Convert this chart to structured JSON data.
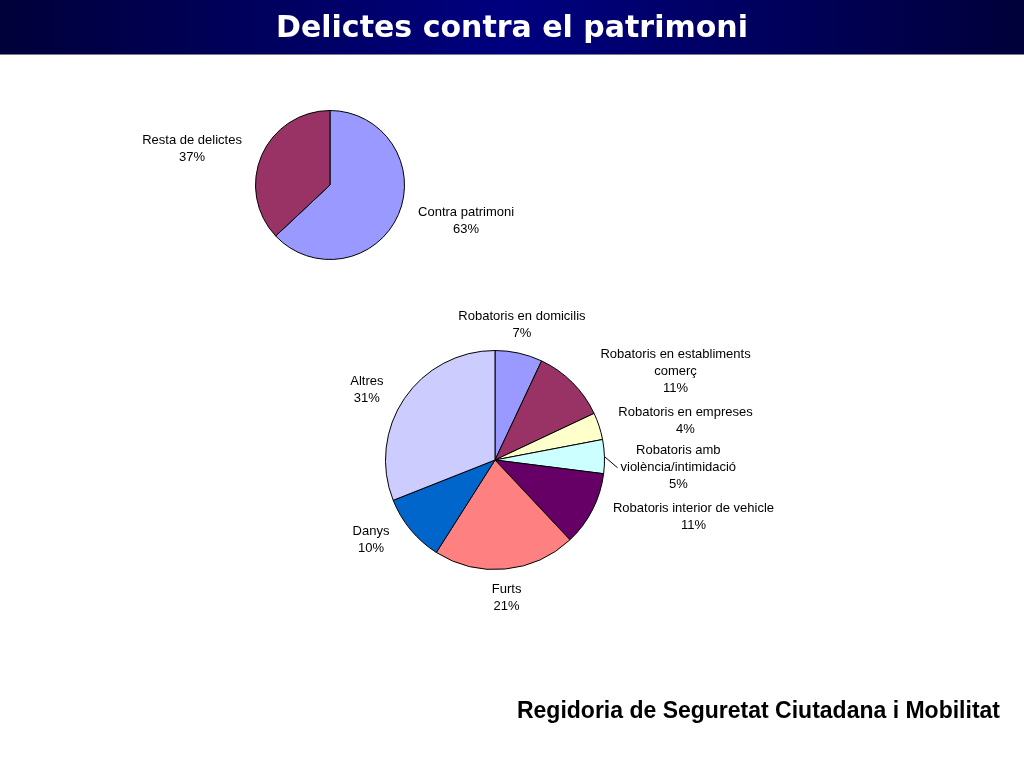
{
  "chart_data": [
    {
      "type": "pie",
      "title": "Delictes contra el patrimoni",
      "categories": [
        "Contra patrimoni",
        "Resta de delictes"
      ],
      "values": [
        63,
        37
      ],
      "colors": [
        "#9999ff",
        "#993366"
      ],
      "value_labels": [
        "63%",
        "37%"
      ]
    },
    {
      "type": "pie",
      "categories": [
        "Robatoris en domicilis",
        "Robatoris en establiments comerç",
        "Robatoris en empreses",
        "Robatoris amb violència/intimidació",
        "Robatoris interior de vehicle",
        "Furts",
        "Danys",
        "Altres"
      ],
      "values": [
        7,
        11,
        4,
        5,
        11,
        21,
        10,
        31
      ],
      "colors": [
        "#9999ff",
        "#993366",
        "#ffffcc",
        "#ccffff",
        "#660066",
        "#ff8080",
        "#0066cc",
        "#ccccff"
      ],
      "value_labels": [
        "7%",
        "11%",
        "4%",
        "5%",
        "11%",
        "21%",
        "10%",
        "31%"
      ],
      "annotations": [
        "Regidoria de Seguretat Ciutadana i Mobilitat"
      ]
    }
  ]
}
